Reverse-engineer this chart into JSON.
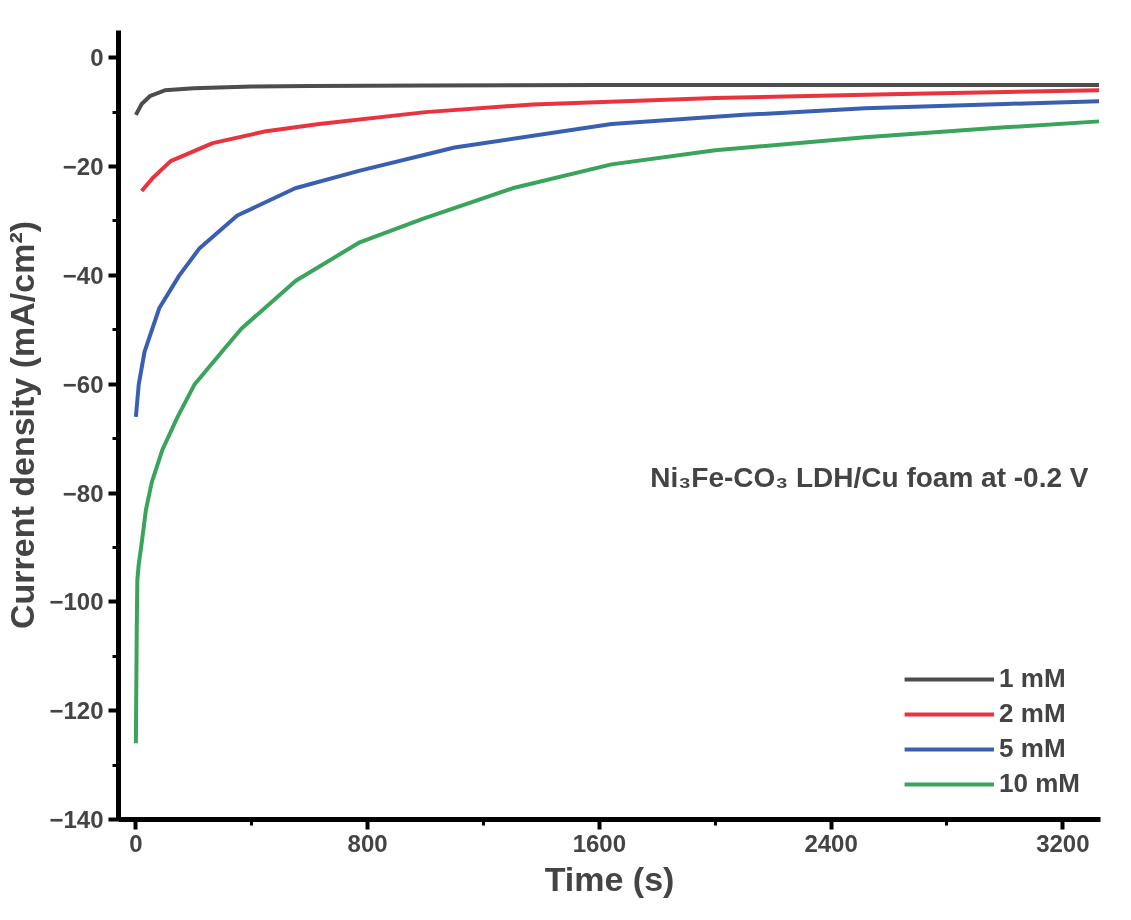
{
  "chart_data": {
    "type": "line",
    "xlabel": "Time (s)",
    "ylabel": "Current density (mA/cm²)",
    "annotations": [
      "Ni₃Fe-CO₃ LDH/Cu foam at -0.2 V"
    ],
    "xlim": [
      -60,
      3330
    ],
    "ylim": [
      -140,
      5
    ],
    "xticks": [
      0,
      800,
      1600,
      2400,
      3200
    ],
    "yticks": [
      -140,
      -120,
      -100,
      -80,
      -60,
      -40,
      -20,
      0
    ],
    "grid": false,
    "legend": "bottom right",
    "line_style": "solid",
    "series": [
      {
        "name": "1 mM",
        "color": "#4d4d4d",
        "x": [
          0,
          20,
          50,
          100,
          200,
          400,
          600,
          1000,
          1600,
          2400,
          3325
        ],
        "values": [
          -10.5,
          -8.5,
          -7,
          -6,
          -5.6,
          -5.3,
          -5.2,
          -5.1,
          -5,
          -5,
          -5
        ]
      },
      {
        "name": "2 mM",
        "color": "#e8343f",
        "x": [
          20,
          60,
          120,
          265,
          450,
          633,
          1000,
          1370,
          2000,
          2600,
          3325
        ],
        "values": [
          -24.5,
          -22,
          -19,
          -15.7,
          -13.5,
          -12.2,
          -10,
          -8.6,
          -7.4,
          -6.7,
          -6
        ]
      },
      {
        "name": "5 mM",
        "color": "#3a5fb0",
        "x": [
          0,
          10,
          30,
          81,
          150,
          220,
          350,
          550,
          770,
          1100,
          1642,
          2100,
          2518,
          3000,
          3325
        ],
        "values": [
          -66,
          -60,
          -54,
          -46,
          -40,
          -35,
          -29,
          -24,
          -20.8,
          -16.5,
          -12.2,
          -10.5,
          -9.3,
          -8.5,
          -8
        ]
      },
      {
        "name": "10 mM",
        "color": "#3aa35c",
        "x": [
          0,
          3,
          5,
          10,
          18,
          35,
          55,
          92,
          144,
          203,
          302,
          364,
          552,
          770,
          990,
          1300,
          1642,
          2000,
          2518,
          3000,
          3325
        ],
        "values": [
          -126,
          -105,
          -96,
          -93,
          -90,
          -83,
          -78,
          -72,
          -66,
          -60,
          -53.7,
          -49.8,
          -41,
          -34,
          -29.6,
          -24,
          -19.6,
          -17,
          -14.6,
          -12.8,
          -11.7
        ]
      }
    ]
  }
}
